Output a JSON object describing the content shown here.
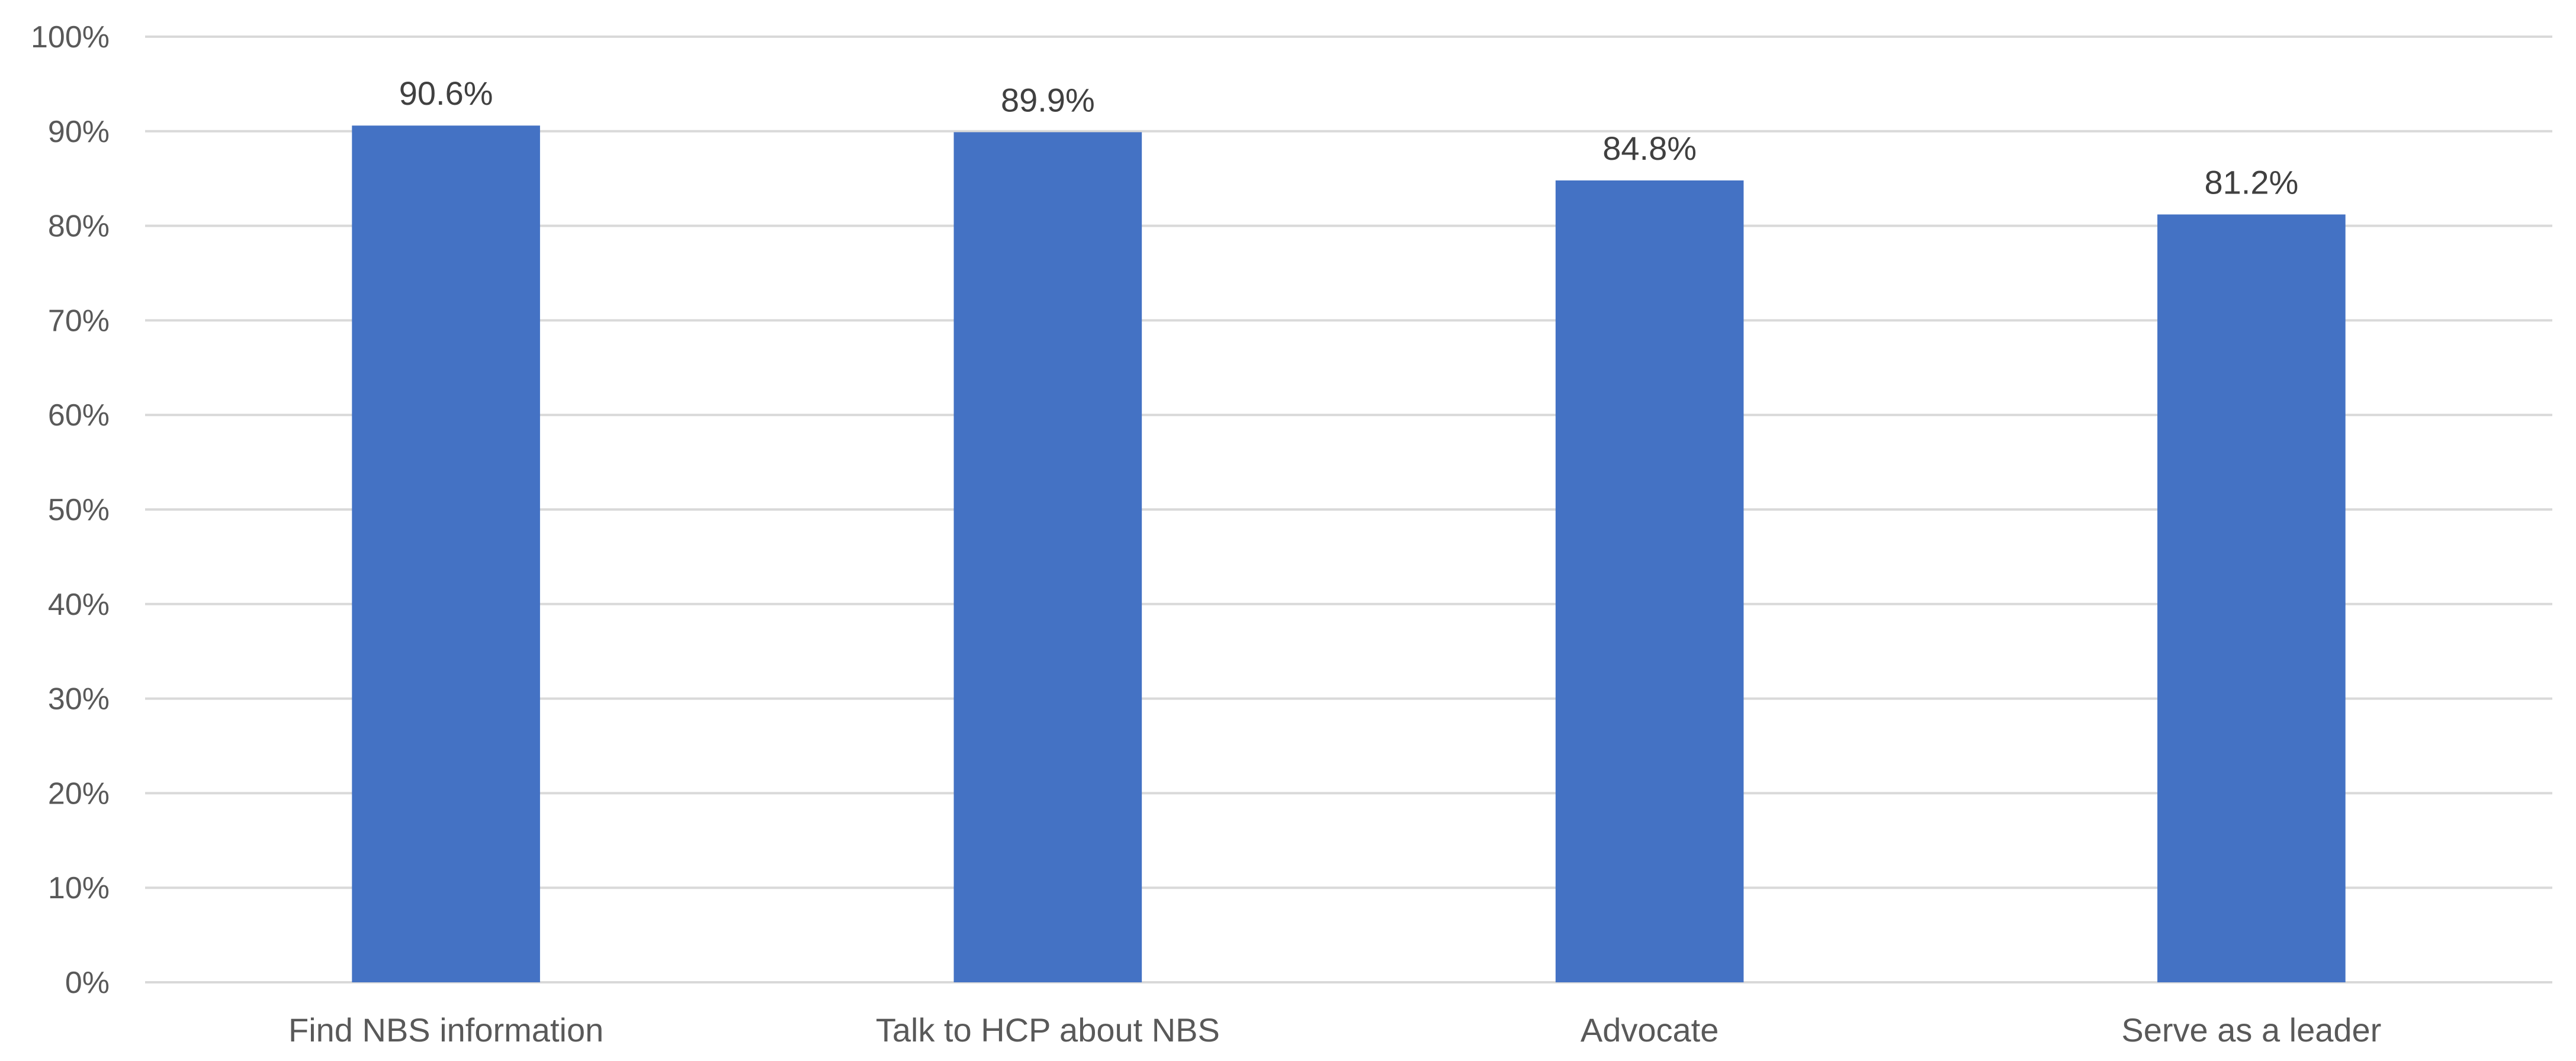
{
  "chart_data": {
    "type": "bar",
    "categories": [
      "Find NBS information",
      "Talk to HCP about NBS",
      "Advocate",
      "Serve as a leader"
    ],
    "values": [
      90.6,
      89.9,
      84.8,
      81.2
    ],
    "data_labels": [
      "90.6%",
      "89.9%",
      "84.8%",
      "81.2%"
    ],
    "title": "",
    "xlabel": "",
    "ylabel": "",
    "ylim": [
      0,
      100
    ],
    "y_tick_values": [
      0,
      10,
      20,
      30,
      40,
      50,
      60,
      70,
      80,
      90,
      100
    ],
    "y_tick_labels": [
      "0%",
      "10%",
      "20%",
      "30%",
      "40%",
      "50%",
      "60%",
      "70%",
      "80%",
      "90%",
      "100%"
    ],
    "grid": true,
    "legend": "none",
    "bar_color": "#4472c4"
  }
}
